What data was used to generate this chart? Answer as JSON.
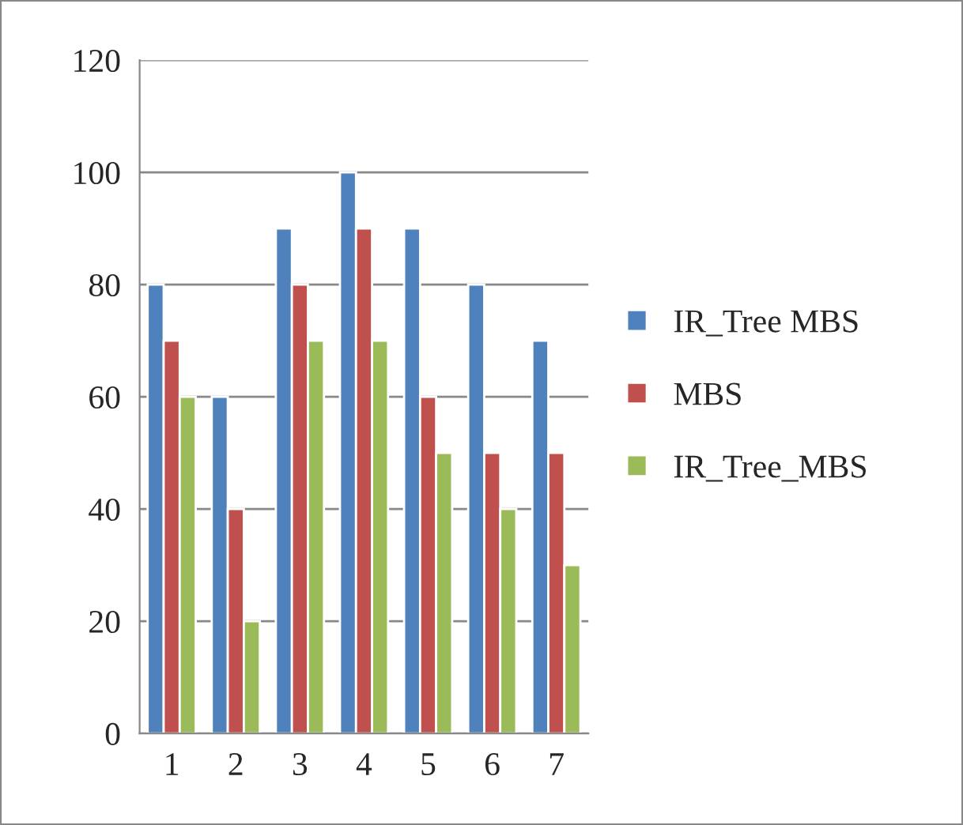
{
  "chart_data": {
    "type": "bar",
    "categories": [
      "1",
      "2",
      "3",
      "4",
      "5",
      "6",
      "7"
    ],
    "series": [
      {
        "name": "IR_Tree MBS",
        "color": "#4f81bd",
        "values": [
          80,
          60,
          90,
          100,
          90,
          80,
          70
        ]
      },
      {
        "name": "MBS",
        "color": "#c0504d",
        "values": [
          70,
          40,
          80,
          90,
          60,
          50,
          50
        ]
      },
      {
        "name": "IR_Tree_MBS",
        "color": "#9bbb59",
        "values": [
          60,
          20,
          70,
          70,
          50,
          40,
          30
        ]
      }
    ],
    "ylim": [
      0,
      120
    ],
    "yticks": [
      0,
      20,
      40,
      60,
      80,
      100,
      120
    ],
    "grid": "y",
    "legend": "right"
  }
}
